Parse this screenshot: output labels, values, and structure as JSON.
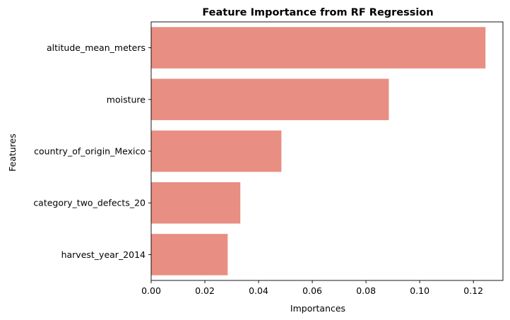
{
  "chart_data": {
    "type": "bar",
    "orientation": "horizontal",
    "title": "Feature Importance from RF Regression",
    "xlabel": "Importances",
    "ylabel": "Features",
    "categories": [
      "altitude_mean_meters",
      "moisture",
      "country_of_origin_Mexico",
      "category_two_defects_20",
      "harvest_year_2014"
    ],
    "values": [
      0.1245,
      0.0885,
      0.0485,
      0.0332,
      0.0285
    ],
    "xlim": [
      0,
      0.131
    ],
    "xticks": [
      0.0,
      0.02,
      0.04,
      0.06,
      0.08,
      0.1,
      0.12
    ],
    "xtick_labels": [
      "0.00",
      "0.02",
      "0.04",
      "0.06",
      "0.08",
      "0.10",
      "0.12"
    ],
    "grid": false,
    "colors": {
      "bar": "#e98e82",
      "axis": "#000000"
    }
  }
}
